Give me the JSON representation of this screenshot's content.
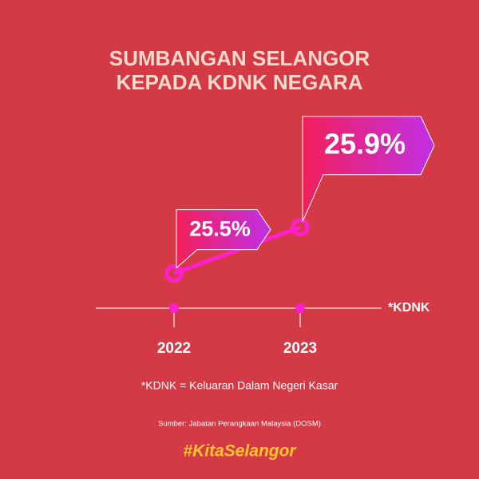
{
  "chart_data": {
    "type": "line",
    "title": [
      "SUMBANGAN SELANGOR",
      "KEPADA KDNK NEGARA"
    ],
    "categories": [
      "2022",
      "2023"
    ],
    "series": [
      {
        "name": "*KDNK",
        "color": "#ff1fd0",
        "values": [
          25.5,
          25.9
        ],
        "value_labels": [
          "25.5%",
          "25.9%"
        ]
      }
    ],
    "ylim": [
      25.2,
      26.9
    ],
    "note": "*KDNK = Keluaran Dalam Negeri Kasar",
    "source": "Sumber: Jabatan Perangkaan Malaysia (DOSM)",
    "brand": "#KitaSelangor"
  }
}
